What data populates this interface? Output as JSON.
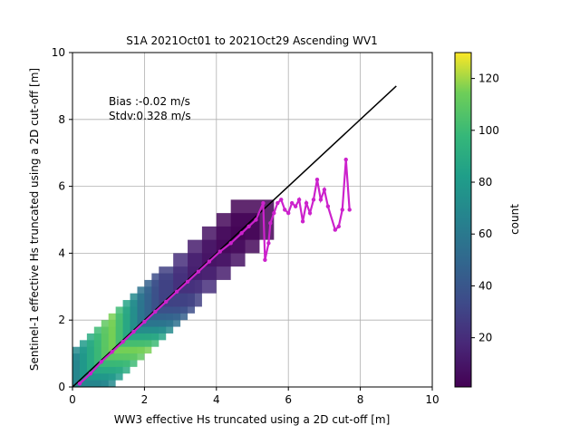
{
  "chart_data": {
    "type": "heatmap",
    "title": "S1A 2021Oct01 to 2021Oct29 Ascending WV1",
    "xlabel": "WW3 effective Hs truncated using a 2D cut-off [m]",
    "ylabel": "Sentinel-1 effective Hs truncated using a 2D cut-off [m]",
    "xlim": [
      0,
      10
    ],
    "ylim": [
      0,
      10
    ],
    "xticks": [
      "0",
      "2",
      "4",
      "6",
      "8",
      "10"
    ],
    "yticks": [
      "0",
      "2",
      "4",
      "6",
      "8",
      "10"
    ],
    "grid": true,
    "annotations": [
      "Bias :-0.02 m/s",
      "Stdv:0.328 m/s"
    ],
    "colorbar": {
      "label": "count",
      "range": [
        1,
        130
      ],
      "ticks": [
        "20",
        "40",
        "60",
        "80",
        "100",
        "120"
      ],
      "colormap": "viridis"
    },
    "identity_line": {
      "x": [
        0,
        9
      ],
      "y": [
        0,
        9
      ],
      "color": "#000000"
    },
    "mean_curve": {
      "color": "#cc22cc",
      "x": [
        0.2,
        0.5,
        0.8,
        1.1,
        1.4,
        1.7,
        2.0,
        2.3,
        2.6,
        2.9,
        3.2,
        3.5,
        3.8,
        4.1,
        4.4,
        4.7,
        4.9,
        5.1,
        5.3,
        5.35,
        5.45,
        5.5,
        5.6,
        5.7,
        5.8,
        5.9,
        6.0,
        6.1,
        6.2,
        6.3,
        6.4,
        6.5,
        6.6,
        6.7,
        6.8,
        6.9,
        7.0,
        7.1,
        7.3,
        7.4,
        7.5,
        7.6,
        7.7
      ],
      "y": [
        0.1,
        0.4,
        0.75,
        1.05,
        1.35,
        1.65,
        1.95,
        2.25,
        2.55,
        2.85,
        3.15,
        3.45,
        3.75,
        4.05,
        4.3,
        4.6,
        4.8,
        5.0,
        5.5,
        3.8,
        4.3,
        4.9,
        5.2,
        5.5,
        5.6,
        5.3,
        5.2,
        5.5,
        5.4,
        5.6,
        4.95,
        5.5,
        5.2,
        5.6,
        6.2,
        5.6,
        5.9,
        5.4,
        4.7,
        4.8,
        5.3,
        6.8,
        5.3
      ]
    },
    "density": [
      {
        "x": 0.2,
        "y": 0.2,
        "count": 40
      },
      {
        "x": 0.4,
        "y": 0.4,
        "count": 55
      },
      {
        "x": 0.6,
        "y": 0.6,
        "count": 70
      },
      {
        "x": 0.8,
        "y": 0.8,
        "count": 80
      },
      {
        "x": 1.0,
        "y": 1.0,
        "count": 90
      },
      {
        "x": 1.2,
        "y": 1.2,
        "count": 100
      },
      {
        "x": 1.4,
        "y": 1.4,
        "count": 110
      },
      {
        "x": 1.6,
        "y": 1.6,
        "count": 115
      },
      {
        "x": 1.8,
        "y": 1.8,
        "count": 100
      },
      {
        "x": 2.0,
        "y": 2.0,
        "count": 85
      },
      {
        "x": 2.2,
        "y": 2.2,
        "count": 70
      },
      {
        "x": 2.4,
        "y": 2.4,
        "count": 55
      },
      {
        "x": 2.6,
        "y": 2.6,
        "count": 45
      },
      {
        "x": 2.8,
        "y": 2.8,
        "count": 35
      },
      {
        "x": 3.0,
        "y": 3.0,
        "count": 28
      },
      {
        "x": 3.4,
        "y": 3.4,
        "count": 20
      },
      {
        "x": 3.8,
        "y": 3.8,
        "count": 12
      },
      {
        "x": 4.2,
        "y": 4.2,
        "count": 8
      },
      {
        "x": 4.6,
        "y": 4.6,
        "count": 4
      },
      {
        "x": 5.0,
        "y": 5.0,
        "count": 2
      }
    ]
  }
}
